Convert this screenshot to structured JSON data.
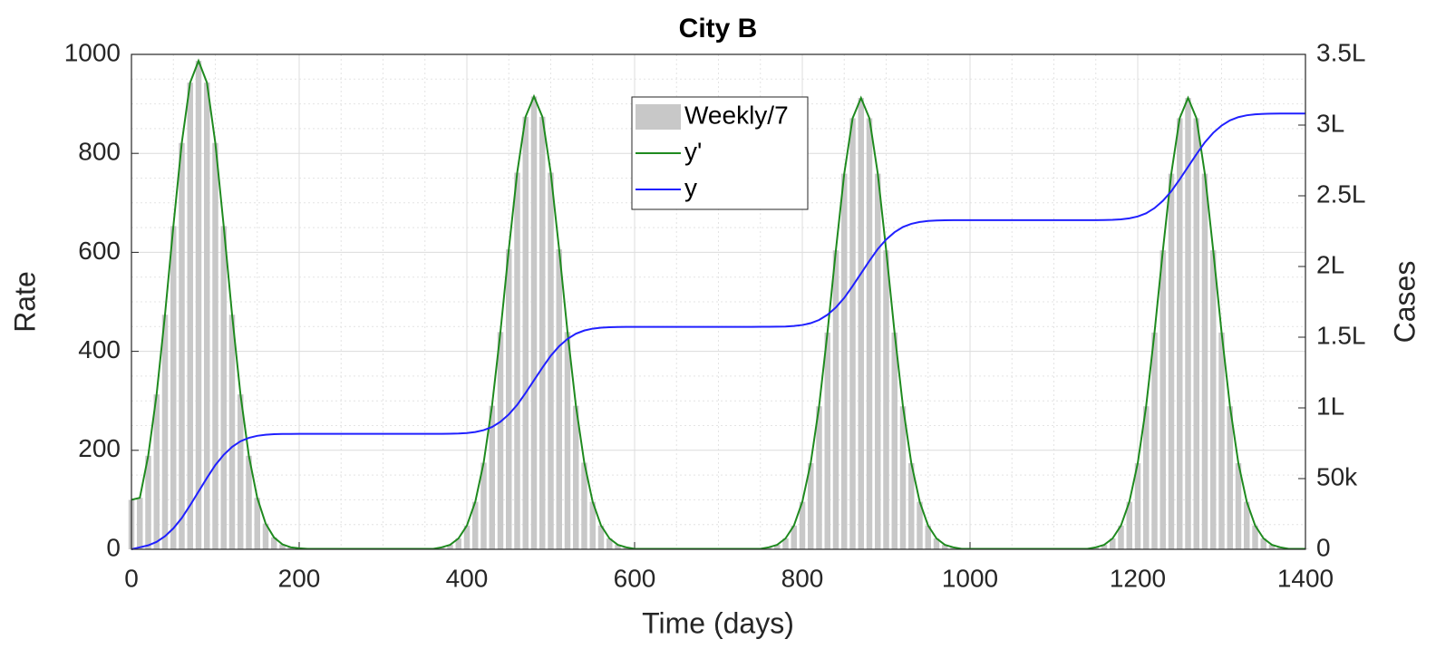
{
  "chart_data": {
    "type": "combo",
    "title": "City B",
    "xlabel": "Time (days)",
    "ylabel": "Rate",
    "y2label": "Cases",
    "x": [
      0,
      10,
      20,
      30,
      40,
      50,
      60,
      70,
      80,
      90,
      100,
      110,
      120,
      130,
      140,
      150,
      160,
      170,
      180,
      190,
      200,
      210,
      220,
      230,
      240,
      250,
      260,
      270,
      280,
      290,
      300,
      310,
      320,
      330,
      340,
      350,
      360,
      370,
      380,
      390,
      400,
      410,
      420,
      430,
      440,
      450,
      460,
      470,
      480,
      490,
      500,
      510,
      520,
      530,
      540,
      550,
      560,
      570,
      580,
      590,
      600,
      610,
      620,
      630,
      640,
      650,
      660,
      670,
      680,
      690,
      700,
      710,
      720,
      730,
      740,
      750,
      760,
      770,
      780,
      790,
      800,
      810,
      820,
      830,
      840,
      850,
      860,
      870,
      880,
      890,
      900,
      910,
      920,
      930,
      940,
      950,
      960,
      970,
      980,
      990,
      1000,
      1010,
      1020,
      1030,
      1040,
      1050,
      1060,
      1070,
      1080,
      1090,
      1100,
      1110,
      1120,
      1130,
      1140,
      1150,
      1160,
      1170,
      1180,
      1190,
      1200,
      1210,
      1220,
      1230,
      1240,
      1250,
      1260,
      1270,
      1280,
      1290,
      1300,
      1310,
      1320,
      1330,
      1340,
      1350,
      1360,
      1370,
      1380,
      1390,
      1400
    ],
    "series": [
      {
        "name": "Weekly/7",
        "type": "bar",
        "color": "#c8c8c8",
        "values": [
          100,
          104,
          189,
          313,
          474,
          653,
          821,
          943,
          987,
          943,
          821,
          653,
          474,
          313,
          189,
          104,
          52,
          24,
          10,
          4,
          2,
          1,
          1,
          1,
          1,
          1,
          1,
          1,
          1,
          1,
          1,
          1,
          1,
          1,
          1,
          1,
          1,
          4,
          9,
          22,
          48,
          96,
          175,
          290,
          439,
          606,
          761,
          874,
          915,
          874,
          761,
          606,
          439,
          290,
          175,
          96,
          48,
          22,
          9,
          4,
          1,
          1,
          1,
          1,
          1,
          1,
          1,
          1,
          1,
          1,
          1,
          1,
          1,
          1,
          1,
          1,
          4,
          9,
          22,
          48,
          96,
          174,
          289,
          438,
          604,
          759,
          871,
          912,
          871,
          759,
          604,
          438,
          289,
          174,
          96,
          48,
          22,
          9,
          4,
          1,
          1,
          1,
          1,
          1,
          1,
          1,
          1,
          1,
          1,
          1,
          1,
          1,
          1,
          1,
          1,
          4,
          9,
          22,
          48,
          96,
          174,
          289,
          438,
          604,
          759,
          871,
          912,
          871,
          759,
          604,
          438,
          289,
          174,
          96,
          48,
          22,
          9,
          4,
          1,
          1,
          1
        ]
      },
      {
        "name": "y'",
        "type": "line",
        "color": "#1f8a1f",
        "values": [
          100,
          104,
          189,
          313,
          474,
          653,
          821,
          943,
          987,
          943,
          821,
          653,
          474,
          313,
          189,
          104,
          52,
          24,
          10,
          4,
          2,
          1,
          1,
          1,
          1,
          1,
          1,
          1,
          1,
          1,
          1,
          1,
          1,
          1,
          1,
          1,
          1,
          4,
          9,
          22,
          48,
          96,
          175,
          290,
          439,
          606,
          761,
          874,
          915,
          874,
          761,
          606,
          439,
          290,
          175,
          96,
          48,
          22,
          9,
          4,
          1,
          1,
          1,
          1,
          1,
          1,
          1,
          1,
          1,
          1,
          1,
          1,
          1,
          1,
          1,
          1,
          4,
          9,
          22,
          48,
          96,
          174,
          289,
          438,
          604,
          759,
          871,
          912,
          871,
          759,
          604,
          438,
          289,
          174,
          96,
          48,
          22,
          9,
          4,
          1,
          1,
          1,
          1,
          1,
          1,
          1,
          1,
          1,
          1,
          1,
          1,
          1,
          1,
          1,
          1,
          4,
          9,
          22,
          48,
          96,
          174,
          289,
          438,
          604,
          759,
          871,
          912,
          871,
          759,
          604,
          438,
          289,
          174,
          96,
          48,
          22,
          9,
          4,
          1,
          1,
          1
        ]
      },
      {
        "name": "y",
        "type": "line",
        "axis": "y2",
        "color": "#2020ff",
        "values": [
          0,
          1388,
          2808,
          5249,
          9234,
          14810,
          22117,
          31195,
          40820,
          50445,
          59524,
          66830,
          72406,
          76391,
          78832,
          80252,
          81003,
          81379,
          81542,
          81607,
          81632,
          81640,
          81640,
          81640,
          81640,
          81640,
          81640,
          81640,
          81640,
          81640,
          81640,
          81640,
          81640,
          81640,
          81640,
          81640,
          81648,
          81670,
          81731,
          81882,
          82230,
          82927,
          84244,
          86507,
          90201,
          95370,
          102145,
          110561,
          119485,
          128409,
          136825,
          143600,
          148769,
          152463,
          154726,
          156043,
          156740,
          157088,
          157239,
          157300,
          157322,
          157330,
          157330,
          157330,
          157330,
          157330,
          157330,
          157330,
          157330,
          157330,
          157330,
          157330,
          157330,
          157330,
          157330,
          157338,
          157360,
          157421,
          157571,
          157918,
          158612,
          159925,
          162181,
          165862,
          171015,
          177767,
          186156,
          195050,
          203944,
          212333,
          219085,
          224238,
          227919,
          230175,
          231488,
          232182,
          232529,
          232679,
          232740,
          232762,
          232770,
          232770,
          232770,
          232770,
          232770,
          232770,
          232770,
          232770,
          232770,
          232770,
          232770,
          232770,
          232770,
          232770,
          232778,
          232800,
          232861,
          233011,
          233358,
          234052,
          235365,
          237621,
          241302,
          246455,
          253207,
          261596,
          270490,
          279384,
          287773,
          294525,
          299678,
          303359,
          305615,
          306928,
          307622,
          307969,
          308119,
          308180,
          308202,
          308210,
          308210
        ]
      }
    ],
    "xlim": [
      0,
      1400
    ],
    "xticks": [
      0,
      200,
      400,
      600,
      800,
      1000,
      1200,
      1400
    ],
    "ylim": [
      0,
      1000
    ],
    "yticks": [
      0,
      200,
      400,
      600,
      800,
      1000
    ],
    "y2lim": [
      0,
      350000
    ],
    "y2ticks": [
      0,
      {
        "value": 50000,
        "label": "50k"
      },
      {
        "value": 100000,
        "label": "1L"
      },
      {
        "value": 150000,
        "label": "1.5L"
      },
      {
        "value": 200000,
        "label": "2L"
      },
      {
        "value": 250000,
        "label": "2.5L"
      },
      {
        "value": 300000,
        "label": "3L"
      },
      {
        "value": 350000,
        "label": "3.5L"
      }
    ],
    "grid": true,
    "minor_grid": true,
    "legend": true
  }
}
